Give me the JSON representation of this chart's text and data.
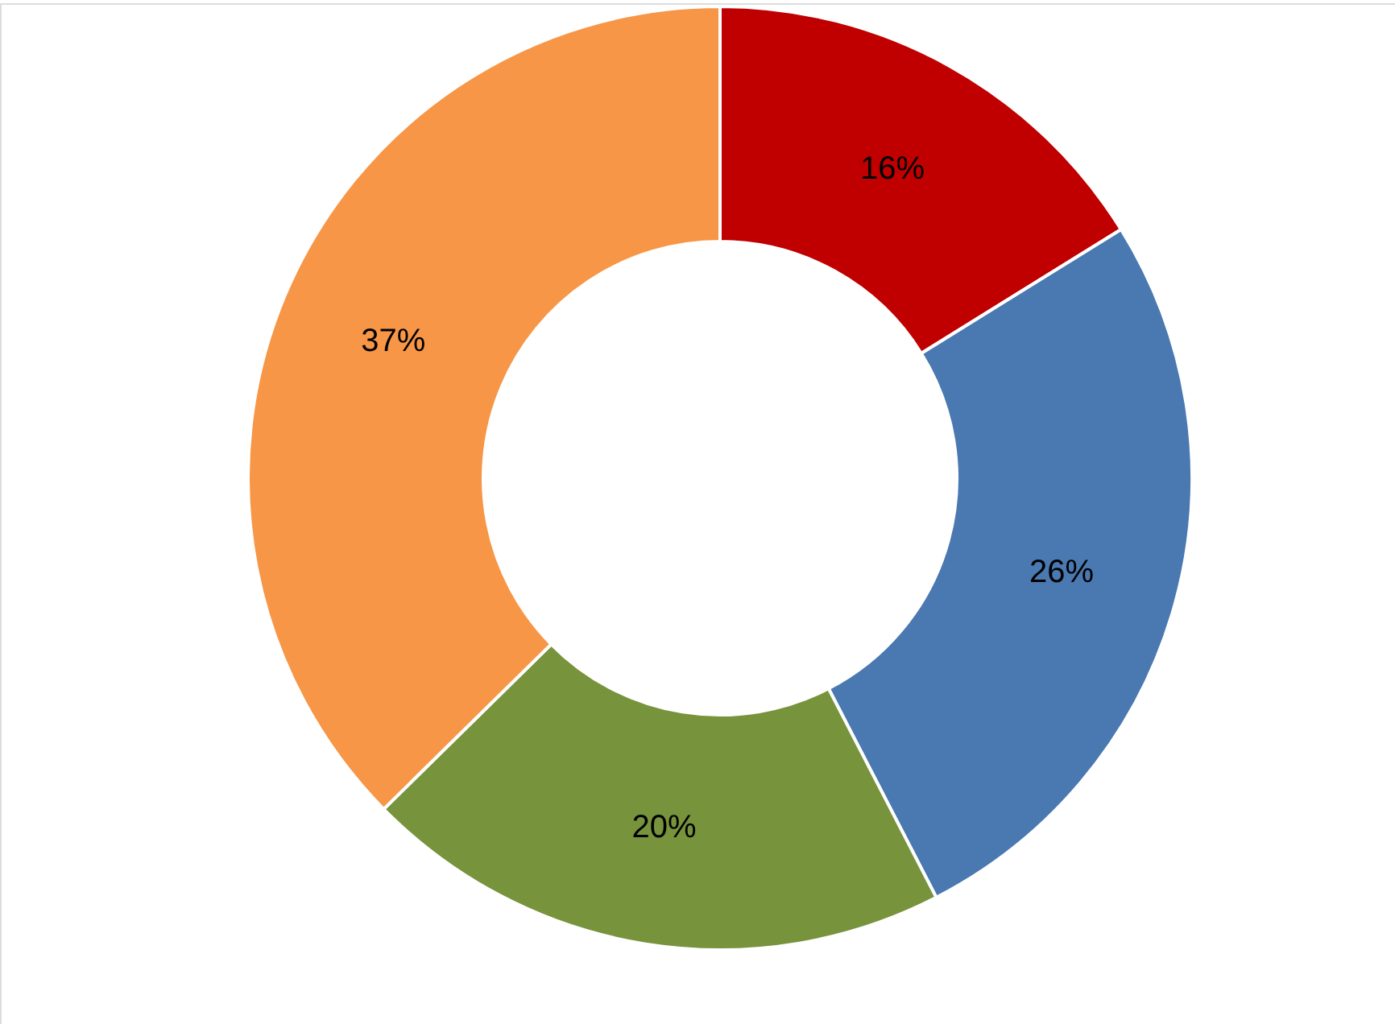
{
  "chart_data": {
    "type": "donut",
    "categories": [
      null,
      null,
      null,
      null
    ],
    "values": [
      16,
      26,
      20,
      37
    ],
    "colors": [
      "#c00000",
      "#4a78b0",
      "#77933c",
      "#f79646"
    ],
    "value_labels": [
      "16%",
      "26%",
      "20%",
      "37%"
    ],
    "legend": false
  }
}
